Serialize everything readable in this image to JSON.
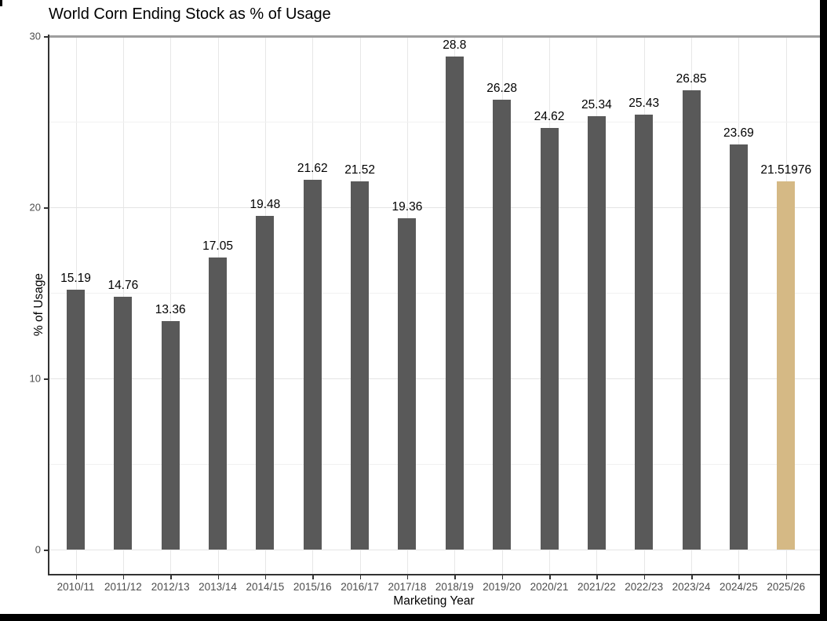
{
  "chart_data": {
    "type": "bar",
    "title": "World Corn Ending Stock as % of Usage",
    "xlabel": "Marketing Year",
    "ylabel": "% of Usage",
    "categories": [
      "2010/11",
      "2011/12",
      "2012/13",
      "2013/14",
      "2014/15",
      "2015/16",
      "2016/17",
      "2017/18",
      "2018/19",
      "2019/20",
      "2020/21",
      "2021/22",
      "2022/23",
      "2023/24",
      "2024/25",
      "2025/26"
    ],
    "values": [
      15.19,
      14.76,
      13.36,
      17.05,
      19.48,
      21.62,
      21.52,
      19.36,
      28.8,
      26.28,
      24.62,
      25.34,
      25.43,
      26.85,
      23.69,
      21.51976
    ],
    "bar_labels": [
      "15.19",
      "14.76",
      "13.36",
      "17.05",
      "19.48",
      "21.62",
      "21.52",
      "19.36",
      "28.8",
      "26.28",
      "24.62",
      "25.34",
      "25.43",
      "26.85",
      "23.69",
      "21.51976"
    ],
    "highlight_index": 15,
    "ylim": [
      0,
      30
    ],
    "yticks": [
      0,
      10,
      20,
      30
    ],
    "yticks_minor": [
      5,
      15,
      25
    ],
    "reference_line_y": 30,
    "legend": "none",
    "grid": "on",
    "colors": {
      "bar": "#595959",
      "highlight_bar": "#d5b985",
      "grid_major": "#e4e4e4",
      "grid_minor": "#f1f1f1",
      "reference_line": "#9e9e9e",
      "axis_line": "#333333",
      "tick_label": "#4d4d4d",
      "text": "#000000",
      "background": "#ffffff",
      "border": "#000000"
    }
  }
}
